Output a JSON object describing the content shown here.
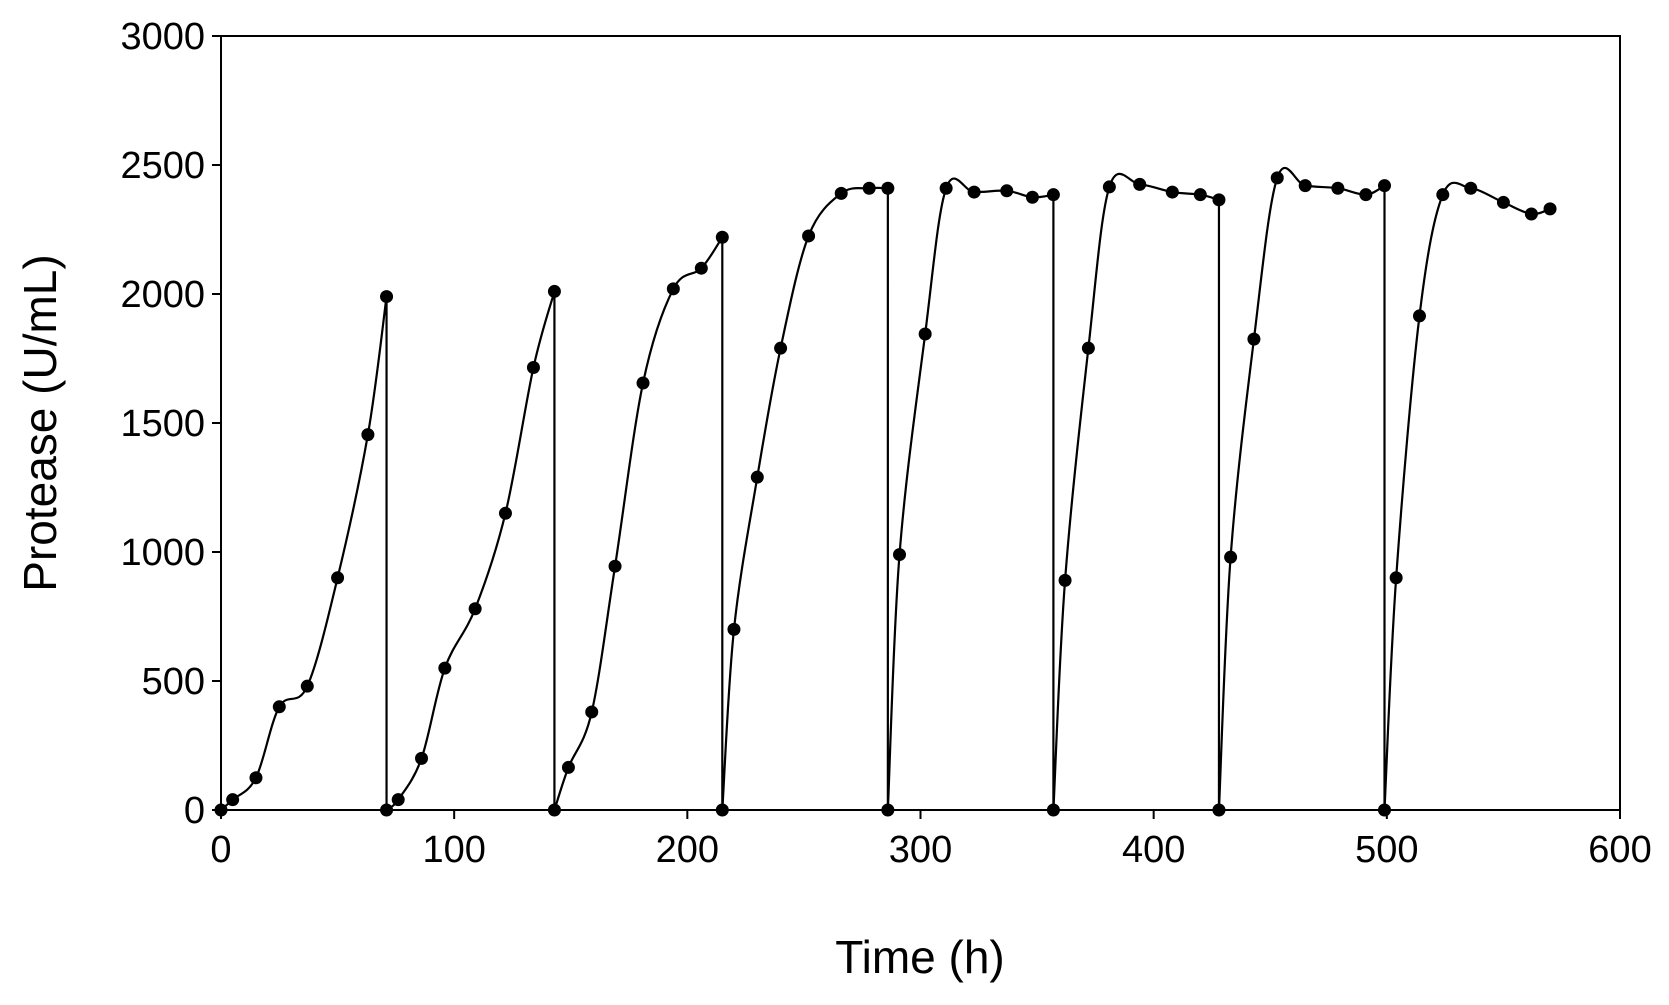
{
  "chart_data": {
    "type": "line",
    "title": "",
    "xlabel": "Time (h)",
    "ylabel": "Protease (U/mL)",
    "xlim": [
      0,
      600
    ],
    "ylim": [
      0,
      3000
    ],
    "x_ticks": [
      "0",
      "100",
      "200",
      "300",
      "400",
      "500",
      "600"
    ],
    "y_ticks": [
      "0",
      "500",
      "1000",
      "1500",
      "2000",
      "2500",
      "3000"
    ],
    "grid": false,
    "legend": "none",
    "line_color": "#000000",
    "marker_color": "#000000",
    "series": [
      {
        "x": [
          0,
          5,
          15,
          25,
          37,
          50,
          63,
          71,
          71,
          76,
          86,
          96,
          109,
          122,
          134,
          143,
          143,
          149,
          159,
          169,
          181,
          194,
          206,
          215,
          215,
          220,
          230,
          240,
          252,
          266,
          278,
          286,
          286,
          291,
          302,
          311,
          323,
          337,
          348,
          357,
          357,
          362,
          372,
          381,
          394,
          408,
          420,
          428,
          428,
          433,
          443,
          453,
          465,
          479,
          491,
          499,
          499,
          504,
          514,
          524,
          536,
          550,
          562,
          570
        ],
        "y": [
          0,
          40,
          125,
          400,
          480,
          900,
          1455,
          1990,
          0,
          40,
          200,
          550,
          780,
          1150,
          1715,
          2010,
          0,
          165,
          380,
          945,
          1655,
          2020,
          2100,
          2220,
          0,
          700,
          1290,
          1790,
          2225,
          2390,
          2410,
          2410,
          0,
          990,
          1845,
          2410,
          2395,
          2400,
          2375,
          2385,
          0,
          890,
          1790,
          2415,
          2425,
          2395,
          2385,
          2365,
          0,
          980,
          1825,
          2450,
          2420,
          2410,
          2385,
          2420,
          0,
          900,
          1915,
          2385,
          2410,
          2355,
          2310,
          2330
        ]
      }
    ]
  }
}
